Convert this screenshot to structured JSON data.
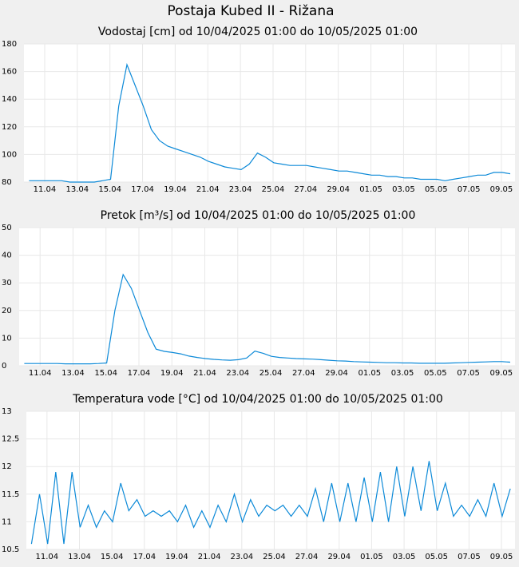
{
  "title": "Postaja Kubed II - Rižana",
  "chart_data": [
    {
      "type": "line",
      "title": "Vodostaj [cm] od 10/04/2025 01:00 do 10/05/2025 01:00",
      "color": "#0d8ad8",
      "grid": true,
      "xlim": [
        "2025-04-09T17:30",
        "2025-05-09T20:00"
      ],
      "xticks": [
        {
          "value": "2025-04-11T00:00",
          "label": "11.04"
        },
        {
          "value": "2025-04-13T00:00",
          "label": "13.04"
        },
        {
          "value": "2025-04-15T00:00",
          "label": "15.04"
        },
        {
          "value": "2025-04-17T00:00",
          "label": "17.04"
        },
        {
          "value": "2025-04-19T00:00",
          "label": "19.04"
        },
        {
          "value": "2025-04-21T00:00",
          "label": "21.04"
        },
        {
          "value": "2025-04-23T00:00",
          "label": "23.04"
        },
        {
          "value": "2025-04-25T00:00",
          "label": "25.04"
        },
        {
          "value": "2025-04-27T00:00",
          "label": "27.04"
        },
        {
          "value": "2025-04-29T00:00",
          "label": "29.04"
        },
        {
          "value": "2025-05-01T00:00",
          "label": "01.05"
        },
        {
          "value": "2025-05-03T00:00",
          "label": "03.05"
        },
        {
          "value": "2025-05-05T00:00",
          "label": "05.05"
        },
        {
          "value": "2025-05-07T00:00",
          "label": "07.05"
        },
        {
          "value": "2025-05-09T00:00",
          "label": "09.05"
        }
      ],
      "ylim": [
        80,
        180
      ],
      "yticks": [
        80,
        100,
        120,
        140,
        160,
        180
      ],
      "x": [
        "2025-04-10T01:00",
        "2025-04-10T13:00",
        "2025-04-11T01:00",
        "2025-04-11T13:00",
        "2025-04-12T01:00",
        "2025-04-12T13:00",
        "2025-04-13T01:00",
        "2025-04-13T13:00",
        "2025-04-14T01:00",
        "2025-04-14T13:00",
        "2025-04-15T01:00",
        "2025-04-15T13:00",
        "2025-04-16T01:00",
        "2025-04-16T13:00",
        "2025-04-17T01:00",
        "2025-04-17T13:00",
        "2025-04-18T01:00",
        "2025-04-18T13:00",
        "2025-04-19T01:00",
        "2025-04-19T13:00",
        "2025-04-20T01:00",
        "2025-04-20T13:00",
        "2025-04-21T01:00",
        "2025-04-21T13:00",
        "2025-04-22T01:00",
        "2025-04-22T13:00",
        "2025-04-23T01:00",
        "2025-04-23T13:00",
        "2025-04-24T01:00",
        "2025-04-24T13:00",
        "2025-04-25T01:00",
        "2025-04-25T13:00",
        "2025-04-26T01:00",
        "2025-04-26T13:00",
        "2025-04-27T01:00",
        "2025-04-27T13:00",
        "2025-04-28T01:00",
        "2025-04-28T13:00",
        "2025-04-29T01:00",
        "2025-04-29T13:00",
        "2025-04-30T01:00",
        "2025-04-30T13:00",
        "2025-05-01T01:00",
        "2025-05-01T13:00",
        "2025-05-02T01:00",
        "2025-05-02T13:00",
        "2025-05-03T01:00",
        "2025-05-03T13:00",
        "2025-05-04T01:00",
        "2025-05-04T13:00",
        "2025-05-05T01:00",
        "2025-05-05T13:00",
        "2025-05-06T01:00",
        "2025-05-06T13:00",
        "2025-05-07T01:00",
        "2025-05-07T13:00",
        "2025-05-08T01:00",
        "2025-05-08T13:00",
        "2025-05-09T01:00",
        "2025-05-09T13:00"
      ],
      "values": [
        81,
        81,
        81,
        81,
        81,
        80,
        80,
        80,
        80,
        81,
        82,
        135,
        165,
        150,
        135,
        118,
        110,
        106,
        104,
        102,
        100,
        98,
        95,
        93,
        91,
        90,
        89,
        93,
        101,
        98,
        94,
        93,
        92,
        92,
        92,
        91,
        90,
        89,
        88,
        88,
        87,
        86,
        85,
        85,
        84,
        84,
        83,
        83,
        82,
        82,
        82,
        81,
        82,
        83,
        84,
        85,
        85,
        87,
        87,
        86
      ]
    },
    {
      "type": "line",
      "title": "Pretok [m³/s] od 10/04/2025 01:00 do 10/05/2025 01:00",
      "color": "#0d8ad8",
      "grid": true,
      "xlim": [
        "2025-04-09T17:30",
        "2025-05-09T20:00"
      ],
      "xticks": [
        {
          "value": "2025-04-11T00:00",
          "label": "11.04"
        },
        {
          "value": "2025-04-13T00:00",
          "label": "13.04"
        },
        {
          "value": "2025-04-15T00:00",
          "label": "15.04"
        },
        {
          "value": "2025-04-17T00:00",
          "label": "17.04"
        },
        {
          "value": "2025-04-19T00:00",
          "label": "19.04"
        },
        {
          "value": "2025-04-21T00:00",
          "label": "21.04"
        },
        {
          "value": "2025-04-23T00:00",
          "label": "23.04"
        },
        {
          "value": "2025-04-25T00:00",
          "label": "25.04"
        },
        {
          "value": "2025-04-27T00:00",
          "label": "27.04"
        },
        {
          "value": "2025-04-29T00:00",
          "label": "29.04"
        },
        {
          "value": "2025-05-01T00:00",
          "label": "01.05"
        },
        {
          "value": "2025-05-03T00:00",
          "label": "03.05"
        },
        {
          "value": "2025-05-05T00:00",
          "label": "05.05"
        },
        {
          "value": "2025-05-07T00:00",
          "label": "07.05"
        },
        {
          "value": "2025-05-09T00:00",
          "label": "09.05"
        }
      ],
      "ylim": [
        0,
        50
      ],
      "yticks": [
        0,
        10,
        20,
        30,
        40,
        50
      ],
      "x": [
        "2025-04-10T01:00",
        "2025-04-10T13:00",
        "2025-04-11T01:00",
        "2025-04-11T13:00",
        "2025-04-12T01:00",
        "2025-04-12T13:00",
        "2025-04-13T01:00",
        "2025-04-13T13:00",
        "2025-04-14T01:00",
        "2025-04-14T13:00",
        "2025-04-15T01:00",
        "2025-04-15T13:00",
        "2025-04-16T01:00",
        "2025-04-16T13:00",
        "2025-04-17T01:00",
        "2025-04-17T13:00",
        "2025-04-18T01:00",
        "2025-04-18T13:00",
        "2025-04-19T01:00",
        "2025-04-19T13:00",
        "2025-04-20T01:00",
        "2025-04-20T13:00",
        "2025-04-21T01:00",
        "2025-04-21T13:00",
        "2025-04-22T01:00",
        "2025-04-22T13:00",
        "2025-04-23T01:00",
        "2025-04-23T13:00",
        "2025-04-24T01:00",
        "2025-04-24T13:00",
        "2025-04-25T01:00",
        "2025-04-25T13:00",
        "2025-04-26T01:00",
        "2025-04-26T13:00",
        "2025-04-27T01:00",
        "2025-04-27T13:00",
        "2025-04-28T01:00",
        "2025-04-28T13:00",
        "2025-04-29T01:00",
        "2025-04-29T13:00",
        "2025-04-30T01:00",
        "2025-04-30T13:00",
        "2025-05-01T01:00",
        "2025-05-01T13:00",
        "2025-05-02T01:00",
        "2025-05-02T13:00",
        "2025-05-03T01:00",
        "2025-05-03T13:00",
        "2025-05-04T01:00",
        "2025-05-04T13:00",
        "2025-05-05T01:00",
        "2025-05-05T13:00",
        "2025-05-06T01:00",
        "2025-05-06T13:00",
        "2025-05-07T01:00",
        "2025-05-07T13:00",
        "2025-05-08T01:00",
        "2025-05-08T13:00",
        "2025-05-09T01:00",
        "2025-05-09T13:00"
      ],
      "values": [
        0.8,
        0.8,
        0.8,
        0.8,
        0.8,
        0.7,
        0.7,
        0.7,
        0.7,
        0.8,
        1,
        20,
        33,
        28,
        20,
        12,
        6,
        5.2,
        4.8,
        4.3,
        3.5,
        3,
        2.6,
        2.3,
        2.1,
        2,
        2.2,
        2.8,
        5.3,
        4.5,
        3.4,
        3,
        2.8,
        2.6,
        2.5,
        2.4,
        2.2,
        2,
        1.8,
        1.7,
        1.5,
        1.4,
        1.3,
        1.2,
        1.1,
        1.1,
        1,
        1,
        0.9,
        0.9,
        0.9,
        0.9,
        1,
        1.1,
        1.2,
        1.3,
        1.4,
        1.5,
        1.5,
        1.3
      ]
    },
    {
      "type": "line",
      "title": "Temperatura vode [°C] od 10/04/2025 01:00 do 10/05/2025 01:00",
      "color": "#0d8ad8",
      "grid": true,
      "xlim": [
        "2025-04-09T17:30",
        "2025-05-09T20:00"
      ],
      "xticks": [
        {
          "value": "2025-04-11T00:00",
          "label": "11.04"
        },
        {
          "value": "2025-04-13T00:00",
          "label": "13.04"
        },
        {
          "value": "2025-04-15T00:00",
          "label": "15.04"
        },
        {
          "value": "2025-04-17T00:00",
          "label": "17.04"
        },
        {
          "value": "2025-04-19T00:00",
          "label": "19.04"
        },
        {
          "value": "2025-04-21T00:00",
          "label": "21.04"
        },
        {
          "value": "2025-04-23T00:00",
          "label": "23.04"
        },
        {
          "value": "2025-04-25T00:00",
          "label": "25.04"
        },
        {
          "value": "2025-04-27T00:00",
          "label": "27.04"
        },
        {
          "value": "2025-04-29T00:00",
          "label": "29.04"
        },
        {
          "value": "2025-05-01T00:00",
          "label": "01.05"
        },
        {
          "value": "2025-05-03T00:00",
          "label": "03.05"
        },
        {
          "value": "2025-05-05T00:00",
          "label": "05.05"
        },
        {
          "value": "2025-05-07T00:00",
          "label": "07.05"
        },
        {
          "value": "2025-05-09T00:00",
          "label": "09.05"
        }
      ],
      "ylim": [
        10.5,
        13
      ],
      "yticks": [
        10.5,
        11,
        11.5,
        12,
        12.5,
        13
      ],
      "x": [
        "2025-04-10T01:00",
        "2025-04-10T13:00",
        "2025-04-11T01:00",
        "2025-04-11T13:00",
        "2025-04-12T01:00",
        "2025-04-12T13:00",
        "2025-04-13T01:00",
        "2025-04-13T13:00",
        "2025-04-14T01:00",
        "2025-04-14T13:00",
        "2025-04-15T01:00",
        "2025-04-15T13:00",
        "2025-04-16T01:00",
        "2025-04-16T13:00",
        "2025-04-17T01:00",
        "2025-04-17T13:00",
        "2025-04-18T01:00",
        "2025-04-18T13:00",
        "2025-04-19T01:00",
        "2025-04-19T13:00",
        "2025-04-20T01:00",
        "2025-04-20T13:00",
        "2025-04-21T01:00",
        "2025-04-21T13:00",
        "2025-04-22T01:00",
        "2025-04-22T13:00",
        "2025-04-23T01:00",
        "2025-04-23T13:00",
        "2025-04-24T01:00",
        "2025-04-24T13:00",
        "2025-04-25T01:00",
        "2025-04-25T13:00",
        "2025-04-26T01:00",
        "2025-04-26T13:00",
        "2025-04-27T01:00",
        "2025-04-27T13:00",
        "2025-04-28T01:00",
        "2025-04-28T13:00",
        "2025-04-29T01:00",
        "2025-04-29T13:00",
        "2025-04-30T01:00",
        "2025-04-30T13:00",
        "2025-05-01T01:00",
        "2025-05-01T13:00",
        "2025-05-02T01:00",
        "2025-05-02T13:00",
        "2025-05-03T01:00",
        "2025-05-03T13:00",
        "2025-05-04T01:00",
        "2025-05-04T13:00",
        "2025-05-05T01:00",
        "2025-05-05T13:00",
        "2025-05-06T01:00",
        "2025-05-06T13:00",
        "2025-05-07T01:00",
        "2025-05-07T13:00",
        "2025-05-08T01:00",
        "2025-05-08T13:00",
        "2025-05-09T01:00",
        "2025-05-09T13:00"
      ],
      "values": [
        10.6,
        11.5,
        10.6,
        11.9,
        10.6,
        11.9,
        10.9,
        11.3,
        10.9,
        11.2,
        11.0,
        11.7,
        11.2,
        11.4,
        11.1,
        11.2,
        11.1,
        11.2,
        11.0,
        11.3,
        10.9,
        11.2,
        10.9,
        11.3,
        11.0,
        11.5,
        11.0,
        11.4,
        11.1,
        11.3,
        11.2,
        11.3,
        11.1,
        11.3,
        11.1,
        11.6,
        11.0,
        11.7,
        11.0,
        11.7,
        11.0,
        11.8,
        11.0,
        11.9,
        11.0,
        12.0,
        11.1,
        12.0,
        11.2,
        12.1,
        11.2,
        11.7,
        11.1,
        11.3,
        11.1,
        11.4,
        11.1,
        11.7,
        11.1,
        11.6
      ]
    }
  ]
}
